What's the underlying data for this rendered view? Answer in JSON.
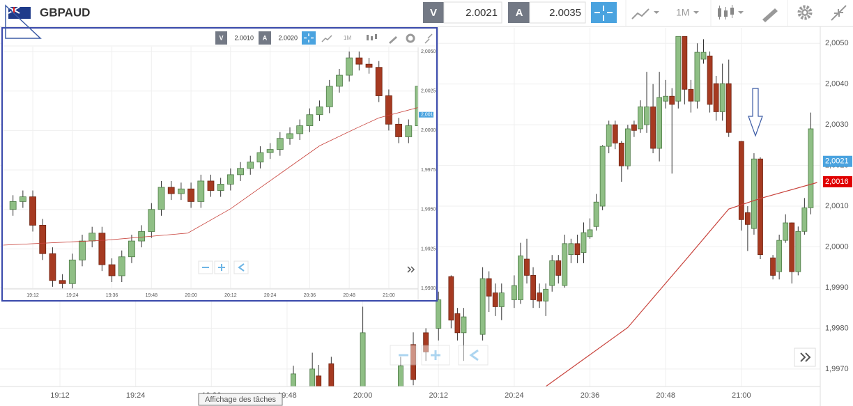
{
  "header": {
    "symbol": "GBPAUD",
    "bid_label": "V",
    "bid": "2.0021",
    "ask_label": "A",
    "ask": "2.0035",
    "timeframe": "1M"
  },
  "inset_header": {
    "bid_label": "V",
    "bid": "2.0010",
    "ask_label": "A",
    "ask": "2.0020",
    "timeframe": "1M"
  },
  "tooltip": "Affichage des tâches",
  "chart_data": [
    {
      "type": "candlestick",
      "grid": true,
      "up_color": "#8fbf85",
      "down_color": "#a63a21",
      "xlim": [
        1142.5,
        1272.5
      ],
      "ylim": [
        1.99657,
        2.00538
      ],
      "xticks": [
        {
          "value": 1152,
          "label": "19:12"
        },
        {
          "value": 1164,
          "label": "19:24"
        },
        {
          "value": 1176,
          "label": "19:36"
        },
        {
          "value": 1188,
          "label": "19:48"
        },
        {
          "value": 1200,
          "label": "20:00"
        },
        {
          "value": 1212,
          "label": "20:12"
        },
        {
          "value": 1224,
          "label": "20:24"
        },
        {
          "value": 1236,
          "label": "20:36"
        },
        {
          "value": 1248,
          "label": "20:48"
        },
        {
          "value": 1260,
          "label": "21:00"
        }
      ],
      "yticks": [
        {
          "value": 2.005,
          "label": "2,0050"
        },
        {
          "value": 2.004,
          "label": "2,0040"
        },
        {
          "value": 2.003,
          "label": "2,0030"
        },
        {
          "value": 2.002,
          "label": "2,0020"
        },
        {
          "value": 2.001,
          "label": "2,0010"
        },
        {
          "value": 2.0,
          "label": "2,0000"
        },
        {
          "value": 1.999,
          "label": "1,9990"
        },
        {
          "value": 1.998,
          "label": "1,9980"
        },
        {
          "value": 1.997,
          "label": "1,9970"
        }
      ],
      "x": [
        1189,
        1192,
        1193,
        1195,
        1200,
        1206,
        1208,
        1210,
        1212,
        1214,
        1215,
        1216,
        1219,
        1220,
        1221,
        1222,
        1224,
        1225,
        1226,
        1227,
        1228,
        1229,
        1230,
        1231,
        1232,
        1233,
        1234,
        1235,
        1236,
        1237,
        1238,
        1239,
        1240,
        1241,
        1242,
        1243,
        1244,
        1245,
        1246,
        1247,
        1248,
        1249,
        1250,
        1251,
        1252,
        1253,
        1254,
        1255,
        1256,
        1257,
        1258,
        1260,
        1261,
        1262,
        1263,
        1265,
        1266,
        1267,
        1268,
        1269,
        1270,
        1271
      ],
      "open": [
        1.9965,
        1.9965,
        1.99683,
        1.99713,
        1.9965,
        1.9965,
        1.9976,
        1.99789,
        1.998,
        1.99927,
        1.99836,
        1.99789,
        1.99785,
        1.99922,
        1.99887,
        1.99853,
        1.9987,
        1.9987,
        1.9997,
        1.9993,
        1.99887,
        1.99867,
        1.99905,
        1.99966,
        1.99905,
        1.99981,
        2.00008,
        1.99986,
        2.00025,
        2.0005,
        2.001,
        2.00247,
        2.003,
        2.00255,
        2.00199,
        2.003,
        2.0029,
        2.003,
        2.00344,
        2.00242,
        2.00358,
        2.0037,
        2.00358,
        2.00517,
        2.00387,
        2.00358,
        2.00461,
        2.00469,
        2.00401,
        2.00332,
        2.00401,
        2.00259,
        2.00084,
        2.00045,
        2.00216,
        1.99973,
        1.99939,
        2.00016,
        2.00059,
        1.99939,
        2.00038,
        2.00096
      ],
      "high": [
        1.99708,
        1.9974,
        1.9971,
        1.9973,
        1.99853,
        1.9973,
        1.9979,
        1.998,
        1.9989,
        1.9993,
        1.9985,
        1.9985,
        1.9995,
        1.9994,
        1.9991,
        1.9991,
        1.9993,
        2.0001,
        2.0002,
        1.9995,
        1.9991,
        1.9991,
        1.9998,
        1.9998,
        2.0003,
        2.0002,
        2.0003,
        2.0006,
        2.0007,
        2.0013,
        2.0025,
        2.0031,
        2.0031,
        2.0026,
        2.003,
        2.0031,
        2.0036,
        2.0043,
        2.004,
        2.0043,
        2.0041,
        2.0039,
        2.00517,
        2.00517,
        2.0041,
        2.005,
        2.0051,
        2.0048,
        2.0042,
        2.0045,
        2.0046,
        2.0026,
        2.001,
        2.0023,
        2.0022,
        1.9998,
        2.0003,
        2.0008,
        2.0006,
        2.0005,
        2.0012,
        2.0033
      ],
      "low": [
        1.9965,
        1.9965,
        1.9965,
        1.9965,
        1.9965,
        1.9965,
        1.9966,
        1.9972,
        1.9977,
        1.998,
        1.9977,
        1.9972,
        1.9977,
        1.9984,
        1.9983,
        1.9982,
        1.9985,
        1.9986,
        1.9991,
        1.9985,
        1.9985,
        1.9983,
        1.9989,
        1.9991,
        1.999,
        1.9996,
        1.9996,
        1.9996,
        2.0002,
        2.0004,
        2.0009,
        2.0023,
        2.0024,
        2.0016,
        2.0019,
        2.0027,
        2.0028,
        2.0028,
        2.0023,
        2.0021,
        2.0034,
        2.0018,
        2.0034,
        2.0035,
        2.0033,
        2.0034,
        2.0045,
        2.0033,
        2.0031,
        2.0031,
        2.0027,
        2.0004,
        1.9999,
        2.0003,
        1.9997,
        1.9992,
        1.9992,
        2.0001,
        1.9991,
        1.9993,
        2.0003,
        2.0008
      ],
      "close": [
        1.99688,
        1.997,
        1.9965,
        1.9965,
        1.99789,
        1.99708,
        1.99674,
        1.99742,
        1.9987,
        1.9982,
        1.99789,
        1.99828,
        1.99922,
        1.99879,
        1.99853,
        1.99887,
        1.99905,
        1.99978,
        1.9993,
        1.9987,
        1.99867,
        1.99896,
        1.99966,
        1.9993,
        2.00008,
        2.00008,
        1.99981,
        2.00035,
        2.00042,
        2.0011,
        2.00247,
        2.003,
        2.00255,
        2.00199,
        2.0029,
        2.00286,
        2.00344,
        2.00344,
        2.00242,
        2.00367,
        2.0037,
        2.0035,
        2.00517,
        2.00387,
        2.00358,
        2.00478,
        2.00478,
        2.0035,
        2.00332,
        2.00401,
        2.00281,
        2.00067,
        2.00055,
        2.00216,
        1.99981,
        1.9993,
        2.00016,
        2.00059,
        1.99939,
        2.00038,
        2.00096,
        2.0029
      ],
      "line": {
        "color": "#c8423b",
        "x": [
          1229,
          1242,
          1251,
          1258,
          1263,
          1272
        ],
        "values": [
          1.99657,
          1.99802,
          1.99965,
          2.00093,
          2.00119,
          2.00158
        ]
      },
      "price_labels": [
        {
          "value": 2.0021,
          "label": "2,0021",
          "color": "#4aa3df"
        },
        {
          "value": 2.0016,
          "label": "2,0016",
          "color": "#e00000"
        }
      ]
    },
    {
      "type": "candlestick",
      "grid": true,
      "up_color": "#8fbf85",
      "down_color": "#a63a21",
      "xlim": [
        1142.9,
        1268.9
      ],
      "ylim": [
        1.98996,
        2.00531
      ],
      "xticks": [
        {
          "value": 1152,
          "label": "19:12"
        },
        {
          "value": 1164,
          "label": "19:24"
        },
        {
          "value": 1176,
          "label": "19:36"
        },
        {
          "value": 1188,
          "label": "19:48"
        },
        {
          "value": 1200,
          "label": "20:00"
        },
        {
          "value": 1212,
          "label": "20:12"
        },
        {
          "value": 1224,
          "label": "20:24"
        },
        {
          "value": 1236,
          "label": "20:36"
        },
        {
          "value": 1248,
          "label": "20:48"
        },
        {
          "value": 1260,
          "label": "21:00"
        }
      ],
      "yticks": [
        {
          "value": 2.005,
          "label": "2,0050"
        },
        {
          "value": 2.0025,
          "label": "2,0025"
        },
        {
          "value": 2.0,
          "label": "2,0000"
        },
        {
          "value": 1.9975,
          "label": "1,9975"
        },
        {
          "value": 1.995,
          "label": "1,9950"
        },
        {
          "value": 1.9925,
          "label": "1,9925"
        },
        {
          "value": 1.99,
          "label": "1,9900"
        }
      ],
      "x": [
        1146,
        1149,
        1152,
        1155,
        1158,
        1161,
        1164,
        1167,
        1170,
        1173,
        1176,
        1179,
        1182,
        1185,
        1188,
        1191,
        1194,
        1197,
        1200,
        1203,
        1206,
        1209,
        1212,
        1215,
        1218,
        1221,
        1224,
        1227,
        1230,
        1233,
        1236,
        1239,
        1242,
        1245,
        1248,
        1251,
        1254,
        1257,
        1260,
        1263,
        1266,
        1269
      ],
      "open": [
        1.995,
        1.9955,
        1.9958,
        1.994,
        1.9922,
        1.9905,
        1.9903,
        1.9918,
        1.993,
        1.9935,
        1.9915,
        1.9908,
        1.992,
        1.993,
        1.9936,
        1.995,
        1.9964,
        1.996,
        1.9963,
        1.9955,
        1.9968,
        1.9962,
        1.9966,
        1.9972,
        1.9976,
        1.998,
        1.9986,
        1.9988,
        1.9995,
        1.9998,
        2.0003,
        2.001,
        2.0015,
        2.0028,
        2.0035,
        2.0046,
        2.0042,
        2.004,
        2.0022,
        2.0004,
        1.9996,
        2.0003
      ],
      "high": [
        1.9959,
        1.9962,
        1.9962,
        1.9944,
        1.9926,
        1.9909,
        1.9922,
        1.9934,
        1.9939,
        1.9939,
        1.9919,
        1.9924,
        1.9934,
        1.994,
        1.9954,
        1.9968,
        1.9968,
        1.9967,
        1.9967,
        1.9972,
        1.9972,
        1.997,
        1.9976,
        1.998,
        1.9984,
        1.999,
        1.9992,
        1.9999,
        2.0002,
        2.0007,
        2.0014,
        2.0019,
        2.0032,
        2.0039,
        2.005,
        2.005,
        2.0046,
        2.0044,
        2.0026,
        2.0008,
        2.0007,
        2.0032
      ],
      "low": [
        1.9946,
        1.9951,
        1.9936,
        1.9918,
        1.9901,
        1.99,
        1.99,
        1.9914,
        1.9926,
        1.9911,
        1.9904,
        1.9904,
        1.9916,
        1.9926,
        1.9932,
        1.9946,
        1.9956,
        1.9956,
        1.9951,
        1.9951,
        1.9958,
        1.9958,
        1.9962,
        1.9968,
        1.9972,
        1.9976,
        1.9982,
        1.9984,
        1.9991,
        1.9994,
        1.9999,
        2.0006,
        2.0011,
        2.0024,
        2.0031,
        2.0038,
        2.0036,
        2.0018,
        2.0,
        1.9992,
        1.9992,
        1.9999
      ],
      "close": [
        1.9955,
        1.9958,
        1.994,
        1.9922,
        1.9905,
        1.9903,
        1.9918,
        1.993,
        1.9935,
        1.9915,
        1.9908,
        1.992,
        1.993,
        1.9936,
        1.995,
        1.9964,
        1.996,
        1.9963,
        1.9955,
        1.9968,
        1.9962,
        1.9966,
        1.9972,
        1.9976,
        1.998,
        1.9986,
        1.9988,
        1.9995,
        1.9998,
        2.0003,
        2.001,
        2.0015,
        2.0028,
        2.0035,
        2.0046,
        2.0042,
        2.004,
        2.0022,
        2.0004,
        1.9996,
        2.0003,
        2.0028
      ],
      "line": {
        "color": "#c8423b",
        "x": [
          1143,
          1174,
          1199,
          1212,
          1227,
          1239,
          1250,
          1257,
          1269
        ],
        "values": [
          1.99274,
          1.99305,
          1.9935,
          1.99504,
          1.99726,
          1.99903,
          2.00013,
          2.0008,
          2.00146
        ]
      },
      "price_labels": [
        {
          "value": 2.001,
          "label": "2,0010",
          "color": "#4aa3df"
        }
      ]
    }
  ]
}
